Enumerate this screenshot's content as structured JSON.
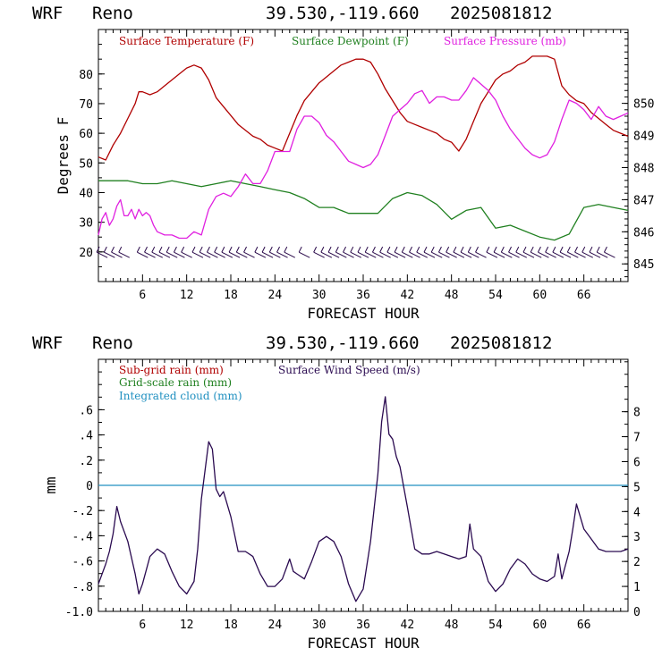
{
  "header": {
    "model": "WRF",
    "station": "Reno",
    "coords": "39.530,-119.660",
    "init": "2025081812"
  },
  "colors": {
    "temperature": "#b00000",
    "dewpoint": "#208020",
    "pressure": "#e020e0",
    "wind_barbs": "#2a0a4a",
    "wind_speed": "#2a0a50",
    "cloud": "#2090c0"
  },
  "chart_data": [
    {
      "type": "line",
      "xlabel": "FORECAST HOUR",
      "ylabel": "Degrees F",
      "xlim": [
        0,
        72
      ],
      "ylim": [
        10,
        95
      ],
      "y2lim": [
        844.45,
        852.3
      ],
      "x_ticks": [
        6,
        12,
        18,
        24,
        30,
        36,
        42,
        48,
        54,
        60,
        66
      ],
      "x_tick_labels": [
        "6",
        "12",
        "18",
        "24",
        "30",
        "36",
        "42",
        "48",
        "54",
        "60",
        "66"
      ],
      "y_ticks": [
        20,
        30,
        40,
        50,
        60,
        70,
        80
      ],
      "y_tick_labels": [
        "20",
        "30",
        "40",
        "50",
        "60",
        "70",
        "80"
      ],
      "y2_ticks": [
        845,
        846,
        847,
        848,
        849,
        850
      ],
      "y2_tick_labels": [
        "845",
        "846",
        "847",
        "848",
        "849",
        "850"
      ],
      "legend": [
        "Surface Temperature (F)",
        "Surface Dewpoint (F)",
        "Surface Pressure (mb)"
      ],
      "series": [
        {
          "name": "Surface Temperature (F)",
          "axis": "left",
          "x": [
            0,
            1,
            2,
            3,
            4,
            5,
            5.5,
            6,
            7,
            8,
            9,
            10,
            11,
            12,
            13,
            14,
            15,
            16,
            17,
            18,
            19,
            20,
            21,
            22,
            23,
            24,
            25,
            26,
            27,
            28,
            29,
            30,
            31,
            32,
            33,
            34,
            35,
            36,
            37,
            38,
            39,
            40,
            41,
            42,
            43,
            44,
            45,
            46,
            47,
            48,
            49,
            50,
            51,
            52,
            53,
            54,
            55,
            56,
            57,
            58,
            59,
            60,
            61,
            62,
            63,
            64,
            65,
            66,
            67,
            68,
            69,
            70,
            71,
            72
          ],
          "y": [
            52,
            51,
            56,
            60,
            65,
            70,
            74,
            74,
            73,
            74,
            76,
            78,
            80,
            82,
            83,
            82,
            78,
            72,
            69,
            66,
            63,
            61,
            59,
            58,
            56,
            55,
            54,
            60,
            66,
            71,
            74,
            77,
            79,
            81,
            83,
            84,
            85,
            85,
            84,
            80,
            75,
            71,
            67,
            64,
            63,
            62,
            61,
            60,
            58,
            57,
            54,
            58,
            64,
            70,
            74,
            78,
            80,
            81,
            83,
            84,
            86,
            86,
            86,
            85,
            76,
            73,
            71,
            70,
            67,
            65,
            63,
            61,
            60,
            59
          ]
        },
        {
          "name": "Surface Dewpoint (F)",
          "axis": "left",
          "x": [
            0,
            2,
            4,
            6,
            8,
            10,
            12,
            14,
            16,
            18,
            20,
            22,
            24,
            26,
            28,
            30,
            32,
            34,
            36,
            38,
            40,
            42,
            44,
            46,
            48,
            50,
            52,
            54,
            56,
            58,
            60,
            62,
            64,
            66,
            68,
            70,
            72
          ],
          "y": [
            44,
            44,
            44,
            43,
            43,
            44,
            43,
            42,
            43,
            44,
            43,
            42,
            41,
            40,
            38,
            35,
            35,
            33,
            33,
            33,
            38,
            40,
            39,
            36,
            31,
            34,
            35,
            28,
            29,
            27,
            25,
            24,
            26,
            35,
            36,
            35,
            34
          ]
        },
        {
          "name": "Surface Pressure (mb)",
          "axis": "right",
          "x": [
            0,
            0.5,
            1,
            1.5,
            2,
            2.5,
            3,
            3.5,
            4,
            4.5,
            5,
            5.5,
            6,
            6.5,
            7,
            7.5,
            8,
            9,
            10,
            11,
            12,
            13,
            14,
            15,
            16,
            17,
            18,
            19,
            20,
            21,
            22,
            23,
            24,
            25,
            26,
            27,
            28,
            29,
            30,
            31,
            32,
            33,
            34,
            35,
            36,
            37,
            38,
            39,
            40,
            41,
            42,
            43,
            44,
            45,
            46,
            47,
            48,
            49,
            50,
            51,
            52,
            53,
            54,
            55,
            56,
            57,
            58,
            59,
            60,
            61,
            62,
            63,
            64,
            65,
            66,
            67,
            68,
            69,
            70,
            71,
            72
          ],
          "y": [
            845.9,
            846.4,
            846.6,
            846.2,
            846.4,
            846.8,
            847.0,
            846.5,
            846.5,
            846.7,
            846.4,
            846.7,
            846.5,
            846.6,
            846.5,
            846.2,
            846.0,
            845.9,
            845.9,
            845.8,
            845.8,
            846.0,
            845.9,
            846.7,
            847.1,
            847.2,
            847.1,
            847.4,
            847.8,
            847.5,
            847.5,
            847.9,
            848.5,
            848.5,
            848.5,
            849.2,
            849.6,
            849.6,
            849.4,
            849.0,
            848.8,
            848.5,
            848.2,
            848.1,
            848.0,
            848.1,
            848.4,
            849.0,
            849.6,
            849.8,
            850.0,
            850.3,
            850.4,
            850.0,
            850.2,
            850.2,
            850.1,
            850.1,
            850.4,
            850.8,
            850.6,
            850.4,
            850.1,
            849.6,
            849.2,
            848.9,
            848.6,
            848.4,
            848.3,
            848.4,
            848.8,
            849.5,
            850.1,
            850.0,
            849.8,
            849.5,
            849.9,
            849.6,
            849.5,
            849.6,
            849.7
          ]
        }
      ],
      "wind_barbs": {
        "y_level": 19,
        "x": [
          0.5,
          1.5,
          2.5,
          3.5,
          6,
          7,
          8,
          9,
          10,
          11,
          12,
          13.5,
          14.5,
          15.5,
          16.5,
          17.5,
          18.5,
          19.5,
          20.5,
          22,
          23,
          24,
          25,
          26,
          28,
          30,
          31,
          32,
          33,
          34,
          35,
          36,
          37,
          38,
          39,
          40,
          41,
          42,
          43,
          44,
          45,
          46,
          47,
          48,
          49,
          50,
          51,
          52,
          53.5,
          54.5,
          55.5,
          56.5,
          57.5,
          58.5,
          59.5,
          60.5,
          61.5,
          62.5,
          63.5,
          64.5,
          65.5,
          66.5,
          67.5,
          68.5,
          69.5
        ]
      }
    },
    {
      "type": "line",
      "xlabel": "FORECAST HOUR",
      "ylabel": "mm",
      "xlim": [
        0,
        72
      ],
      "ylim": [
        -1.0,
        1.0
      ],
      "y2lim": [
        0,
        10.1
      ],
      "x_ticks": [
        6,
        12,
        18,
        24,
        30,
        36,
        42,
        48,
        54,
        60,
        66
      ],
      "x_tick_labels": [
        "6",
        "12",
        "18",
        "24",
        "30",
        "36",
        "42",
        "48",
        "54",
        "60",
        "66"
      ],
      "y_ticks": [
        -1.0,
        -0.8,
        -0.6,
        -0.4,
        -0.2,
        0,
        0.2,
        0.4,
        0.6
      ],
      "y_tick_labels": [
        "-1.0",
        "-.8",
        "-.6",
        "-.4",
        "-.2",
        "0",
        ".2",
        ".4",
        ".6"
      ],
      "y2_ticks": [
        0,
        1,
        2,
        3,
        4,
        5,
        6,
        7,
        8
      ],
      "y2_tick_labels": [
        "0",
        "1",
        "2",
        "3",
        "4",
        "5",
        "6",
        "7",
        "8"
      ],
      "legend": [
        "Sub-grid rain (mm)",
        "Grid-scale rain (mm)",
        "Integrated cloud (mm)",
        "Surface Wind Speed (m/s)"
      ],
      "series": [
        {
          "name": "Integrated cloud (mm)",
          "axis": "left",
          "x": [
            0,
            72
          ],
          "y": [
            0,
            0
          ]
        },
        {
          "name": "Surface Wind Speed (m/s)",
          "axis": "right",
          "x": [
            0,
            1,
            1.5,
            2,
            2.5,
            3,
            4,
            5,
            5.5,
            6,
            7,
            8,
            9,
            10,
            11,
            12,
            13,
            13.5,
            14,
            15,
            15.5,
            16,
            16.5,
            17,
            18,
            19,
            20,
            21,
            22,
            23,
            24,
            25,
            26,
            26.5,
            27,
            28,
            29,
            30,
            31,
            32,
            33,
            34,
            35,
            36,
            37,
            38,
            38.5,
            39,
            39.5,
            40,
            40.5,
            41,
            42,
            43,
            44,
            45,
            46,
            47,
            48,
            49,
            50,
            50.5,
            51,
            52,
            53,
            54,
            55,
            56,
            57,
            58,
            59,
            60,
            61,
            62,
            62.5,
            63,
            64,
            64.5,
            65,
            66,
            67,
            68,
            69,
            70,
            71,
            72
          ],
          "y": [
            1.1,
            1.9,
            2.4,
            3.1,
            4.2,
            3.6,
            2.8,
            1.5,
            0.7,
            1.1,
            2.2,
            2.5,
            2.3,
            1.6,
            1.0,
            0.7,
            1.2,
            2.5,
            4.5,
            6.8,
            6.5,
            4.9,
            4.6,
            4.8,
            3.8,
            2.4,
            2.4,
            2.2,
            1.5,
            1.0,
            1.0,
            1.3,
            2.1,
            1.6,
            1.5,
            1.3,
            2.0,
            2.8,
            3.0,
            2.8,
            2.2,
            1.1,
            0.4,
            0.9,
            2.8,
            5.5,
            7.6,
            8.6,
            7.1,
            6.9,
            6.2,
            5.8,
            4.2,
            2.5,
            2.3,
            2.3,
            2.4,
            2.3,
            2.2,
            2.1,
            2.2,
            3.5,
            2.5,
            2.2,
            1.2,
            0.8,
            1.1,
            1.7,
            2.1,
            1.9,
            1.5,
            1.3,
            1.2,
            1.4,
            2.3,
            1.3,
            2.4,
            3.3,
            4.3,
            3.3,
            2.9,
            2.5,
            2.4,
            2.4,
            2.4,
            2.5
          ]
        }
      ]
    }
  ]
}
